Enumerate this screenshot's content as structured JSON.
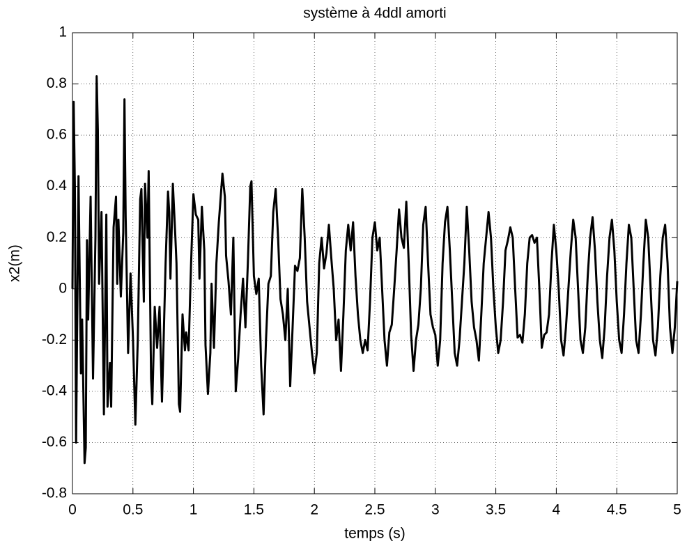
{
  "chart_data": {
    "type": "line",
    "title": "système à 4ddl amorti",
    "xlabel": "temps (s)",
    "ylabel": "x2(m)",
    "color": "#000000",
    "grid": true,
    "xlim": [
      0,
      5
    ],
    "xticks": [
      0,
      0.5,
      1,
      1.5,
      2,
      2.5,
      3,
      3.5,
      4,
      4.5,
      5
    ],
    "ylim": [
      -0.8,
      1
    ],
    "yticks": [
      -0.8,
      -0.6,
      -0.4,
      -0.2,
      0,
      0.2,
      0.4,
      0.6,
      0.8,
      1
    ],
    "x": [
      0,
      0.01,
      0.02,
      0.03,
      0.05,
      0.07,
      0.08,
      0.1,
      0.11,
      0.12,
      0.13,
      0.15,
      0.17,
      0.19,
      0.2,
      0.21,
      0.22,
      0.24,
      0.26,
      0.28,
      0.29,
      0.31,
      0.32,
      0.34,
      0.36,
      0.37,
      0.38,
      0.4,
      0.42,
      0.43,
      0.44,
      0.46,
      0.48,
      0.5,
      0.51,
      0.52,
      0.54,
      0.56,
      0.57,
      0.59,
      0.6,
      0.62,
      0.63,
      0.65,
      0.66,
      0.68,
      0.7,
      0.72,
      0.74,
      0.75,
      0.77,
      0.79,
      0.8,
      0.81,
      0.83,
      0.85,
      0.86,
      0.88,
      0.89,
      0.91,
      0.93,
      0.94,
      0.96,
      0.98,
      1.0,
      1.02,
      1.04,
      1.05,
      1.07,
      1.09,
      1.1,
      1.12,
      1.14,
      1.15,
      1.17,
      1.19,
      1.21,
      1.24,
      1.26,
      1.27,
      1.29,
      1.31,
      1.33,
      1.35,
      1.37,
      1.39,
      1.41,
      1.43,
      1.45,
      1.47,
      1.48,
      1.5,
      1.52,
      1.54,
      1.56,
      1.58,
      1.6,
      1.62,
      1.64,
      1.66,
      1.68,
      1.7,
      1.72,
      1.74,
      1.76,
      1.78,
      1.8,
      1.82,
      1.84,
      1.86,
      1.88,
      1.9,
      1.92,
      1.94,
      1.96,
      1.98,
      2.0,
      2.02,
      2.04,
      2.06,
      2.08,
      2.1,
      2.12,
      2.14,
      2.16,
      2.18,
      2.2,
      2.22,
      2.24,
      2.26,
      2.28,
      2.3,
      2.32,
      2.34,
      2.36,
      2.38,
      2.4,
      2.42,
      2.44,
      2.46,
      2.48,
      2.5,
      2.52,
      2.54,
      2.56,
      2.58,
      2.6,
      2.62,
      2.64,
      2.66,
      2.68,
      2.7,
      2.72,
      2.74,
      2.76,
      2.78,
      2.8,
      2.82,
      2.84,
      2.86,
      2.88,
      2.9,
      2.92,
      2.94,
      2.96,
      2.98,
      3.0,
      3.02,
      3.04,
      3.06,
      3.08,
      3.1,
      3.12,
      3.14,
      3.16,
      3.18,
      3.2,
      3.22,
      3.24,
      3.26,
      3.28,
      3.3,
      3.32,
      3.34,
      3.36,
      3.38,
      3.4,
      3.42,
      3.44,
      3.46,
      3.48,
      3.5,
      3.52,
      3.54,
      3.56,
      3.58,
      3.6,
      3.62,
      3.64,
      3.66,
      3.68,
      3.7,
      3.72,
      3.74,
      3.76,
      3.78,
      3.8,
      3.82,
      3.84,
      3.86,
      3.88,
      3.9,
      3.92,
      3.94,
      3.96,
      3.98,
      4.0,
      4.02,
      4.04,
      4.06,
      4.08,
      4.1,
      4.12,
      4.14,
      4.16,
      4.18,
      4.2,
      4.22,
      4.24,
      4.26,
      4.28,
      4.3,
      4.32,
      4.34,
      4.36,
      4.38,
      4.4,
      4.42,
      4.44,
      4.46,
      4.48,
      4.5,
      4.52,
      4.54,
      4.56,
      4.58,
      4.6,
      4.62,
      4.64,
      4.66,
      4.68,
      4.7,
      4.72,
      4.74,
      4.76,
      4.78,
      4.8,
      4.82,
      4.84,
      4.86,
      4.88,
      4.9,
      4.92,
      4.94,
      4.96,
      4.98,
      5.0
    ],
    "values": [
      0,
      0.73,
      0.4,
      -0.6,
      0.44,
      -0.33,
      -0.12,
      -0.68,
      -0.62,
      0.19,
      -0.12,
      0.36,
      -0.35,
      0.2,
      0.83,
      0.62,
      0.02,
      0.3,
      -0.49,
      0.29,
      -0.46,
      -0.29,
      -0.46,
      0.24,
      0.36,
      0.02,
      0.27,
      -0.03,
      0.22,
      0.74,
      0.28,
      -0.25,
      0.06,
      -0.19,
      -0.36,
      -0.53,
      -0.2,
      0.35,
      0.39,
      -0.05,
      0.41,
      0.2,
      0.46,
      -0.35,
      -0.45,
      -0.07,
      -0.23,
      -0.07,
      -0.44,
      -0.27,
      0.1,
      0.38,
      0.3,
      0.04,
      0.41,
      0.21,
      0.1,
      -0.45,
      -0.48,
      -0.1,
      -0.24,
      -0.17,
      -0.24,
      0.09,
      0.37,
      0.29,
      0.27,
      0.04,
      0.32,
      0.15,
      -0.22,
      -0.41,
      -0.25,
      0.02,
      -0.23,
      0.1,
      0.26,
      0.45,
      0.36,
      0.13,
      0.03,
      -0.1,
      0.2,
      -0.4,
      -0.27,
      -0.1,
      0.04,
      -0.15,
      0.1,
      0.4,
      0.42,
      0.05,
      -0.02,
      0.04,
      -0.3,
      -0.49,
      -0.2,
      0.02,
      0.05,
      0.3,
      0.39,
      0.2,
      -0.04,
      -0.1,
      -0.2,
      0.0,
      -0.38,
      -0.15,
      0.09,
      0.07,
      0.12,
      0.39,
      0.2,
      -0.05,
      -0.15,
      -0.25,
      -0.33,
      -0.25,
      0.1,
      0.2,
      0.08,
      0.14,
      0.25,
      0.12,
      0.0,
      -0.2,
      -0.12,
      -0.32,
      -0.1,
      0.15,
      0.25,
      0.15,
      0.26,
      0.05,
      -0.1,
      -0.2,
      -0.25,
      -0.2,
      -0.24,
      -0.05,
      0.2,
      0.26,
      0.15,
      0.2,
      0.0,
      -0.2,
      -0.3,
      -0.17,
      -0.14,
      0.0,
      0.15,
      0.31,
      0.2,
      0.16,
      0.34,
      0.1,
      -0.18,
      -0.32,
      -0.2,
      -0.14,
      0.0,
      0.25,
      0.32,
      0.1,
      -0.1,
      -0.15,
      -0.18,
      -0.3,
      -0.2,
      0.1,
      0.26,
      0.32,
      0.15,
      -0.05,
      -0.25,
      -0.3,
      -0.2,
      -0.05,
      0.1,
      0.32,
      0.15,
      -0.05,
      -0.15,
      -0.2,
      -0.28,
      -0.1,
      0.1,
      0.2,
      0.3,
      0.2,
      0.0,
      -0.15,
      -0.25,
      -0.2,
      -0.05,
      0.15,
      0.19,
      0.24,
      0.2,
      0.0,
      -0.19,
      -0.18,
      -0.21,
      -0.1,
      0.1,
      0.2,
      0.21,
      0.18,
      0.2,
      0.0,
      -0.23,
      -0.18,
      -0.17,
      -0.1,
      0.1,
      0.25,
      0.15,
      0.0,
      -0.2,
      -0.26,
      -0.15,
      0.0,
      0.15,
      0.27,
      0.2,
      0.0,
      -0.2,
      -0.25,
      -0.15,
      0.05,
      0.2,
      0.28,
      0.15,
      -0.05,
      -0.2,
      -0.27,
      -0.15,
      0.05,
      0.2,
      0.27,
      0.15,
      -0.05,
      -0.2,
      -0.25,
      -0.1,
      0.1,
      0.25,
      0.2,
      0.0,
      -0.2,
      -0.25,
      -0.1,
      0.1,
      0.27,
      0.2,
      0.0,
      -0.2,
      -0.26,
      -0.15,
      0.05,
      0.2,
      0.25,
      0.1,
      -0.15,
      -0.25,
      -0.15,
      0.03
    ]
  }
}
